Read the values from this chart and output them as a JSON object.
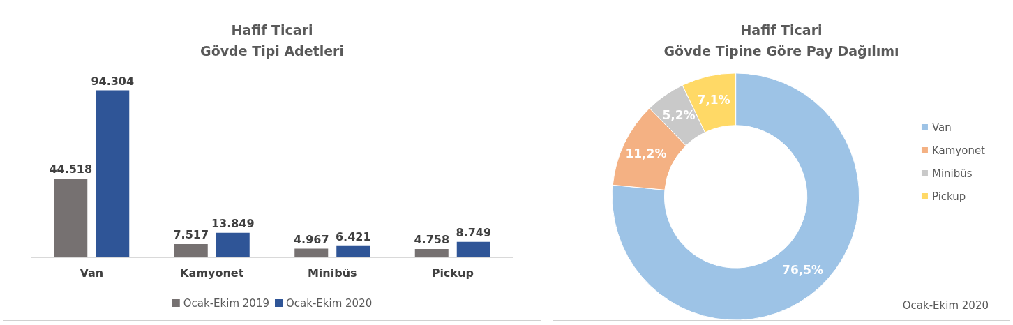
{
  "chart_data": [
    {
      "type": "bar",
      "title": "Hafif Ticari\nGövde Tipi Adetleri",
      "categories": [
        "Van",
        "Kamyonet",
        "Minibüs",
        "Pickup"
      ],
      "series": [
        {
          "name": "Ocak-Ekim 2019",
          "color": "#767171",
          "values": [
            44518,
            7517,
            4967,
            4758
          ],
          "value_labels": [
            "44.518",
            "7.517",
            "4.967",
            "4.758"
          ]
        },
        {
          "name": "Ocak-Ekim 2020",
          "color": "#2f5597",
          "values": [
            94304,
            13849,
            6421,
            8749
          ],
          "value_labels": [
            "94.304",
            "13.849",
            "6.421",
            "8.749"
          ]
        }
      ],
      "legend": "bottom",
      "tick_labels": "x",
      "grid": false
    },
    {
      "type": "donut",
      "title": "Hafif Ticari\nGövde Tipine Göre Pay Dağılımı",
      "categories": [
        "Van",
        "Kamyonet",
        "Minibüs",
        "Pickup"
      ],
      "values": [
        76.5,
        11.2,
        5.2,
        7.1
      ],
      "colors": [
        "#9dc3e6",
        "#f4b183",
        "#c9c9c9",
        "#ffd966"
      ],
      "value_labels": [
        "76,5%",
        "11,2%",
        "5,2%",
        "7,1%"
      ],
      "legend": "right",
      "annotations": [
        "Ocak-Ekim 2020"
      ]
    }
  ]
}
